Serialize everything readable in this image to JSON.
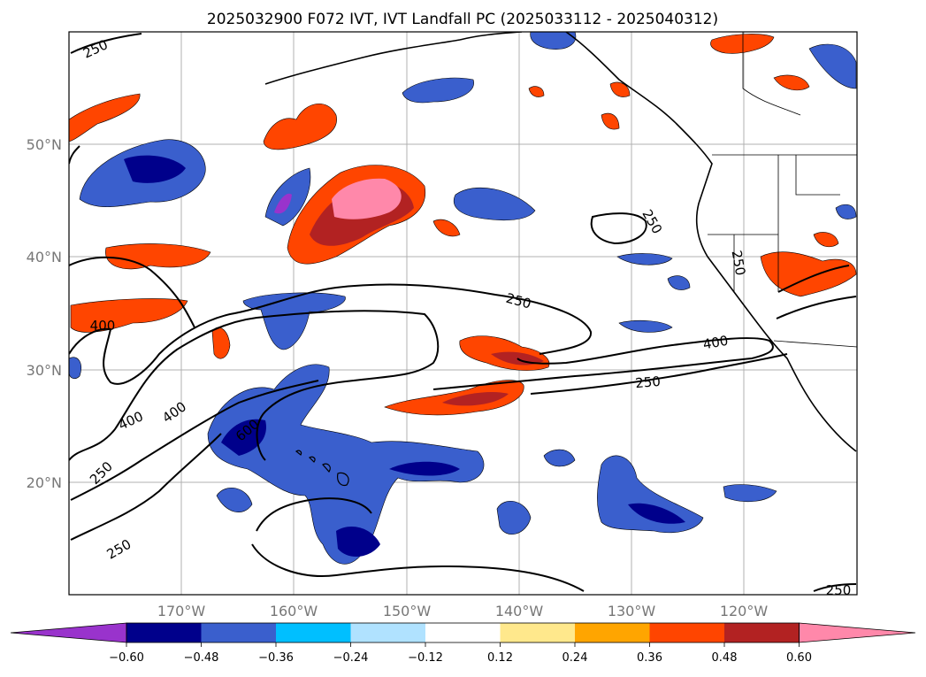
{
  "figure": {
    "title": "2025032900 F072 IVT, IVT Landfall PC (2025033112 - 2025040312)"
  },
  "map": {
    "lat_labels": [
      "50°N",
      "40°N",
      "30°N",
      "20°N"
    ],
    "lon_labels": [
      "170°W",
      "160°W",
      "150°W",
      "140°W",
      "130°W",
      "120°W"
    ],
    "contour_labels": [
      "250",
      "250",
      "250",
      "250",
      "250",
      "250",
      "250",
      "400",
      "400",
      "400",
      "400",
      "600"
    ]
  },
  "colorbar": {
    "ticks": [
      "−0.60",
      "−0.48",
      "−0.36",
      "−0.24",
      "−0.12",
      "0.12",
      "0.24",
      "0.36",
      "0.48",
      "0.60"
    ],
    "colors": [
      "#9933cc",
      "#00008b",
      "#3a5fcd",
      "#00bfff",
      "#b0e2ff",
      "#ffffff",
      "#ffe88c",
      "#ffa500",
      "#ff4500",
      "#b22222",
      "#ff88aa"
    ]
  }
}
